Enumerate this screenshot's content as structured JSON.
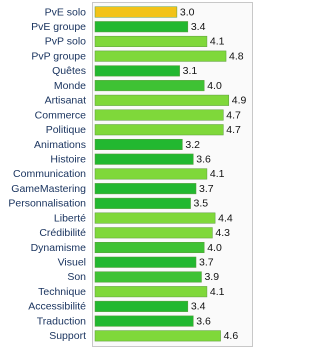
{
  "chart_data": {
    "type": "bar",
    "orientation": "horizontal",
    "categories": [
      "PvE solo",
      "PvE groupe",
      "PvP solo",
      "PvP groupe",
      "Quêtes",
      "Monde",
      "Artisanat",
      "Commerce",
      "Politique",
      "Animations",
      "Histoire",
      "Communication",
      "GameMastering",
      "Personnalisation",
      "Liberté",
      "Crédibilité",
      "Dynamisme",
      "Visuel",
      "Son",
      "Technique",
      "Accessibilité",
      "Traduction",
      "Support"
    ],
    "values": [
      3.0,
      3.4,
      4.1,
      4.8,
      3.1,
      4.0,
      4.9,
      4.7,
      4.7,
      3.2,
      3.6,
      4.1,
      3.7,
      3.5,
      4.4,
      4.3,
      4.0,
      3.7,
      3.9,
      4.1,
      3.4,
      3.6,
      4.6
    ],
    "value_labels": [
      "3.0",
      "3.4",
      "4.1",
      "4.8",
      "3.1",
      "4.0",
      "4.9",
      "4.7",
      "4.7",
      "3.2",
      "3.6",
      "4.1",
      "3.7",
      "3.5",
      "4.4",
      "4.3",
      "4.0",
      "3.7",
      "3.9",
      "4.1",
      "3.4",
      "3.6",
      "4.6"
    ],
    "colors": [
      "#f2c318",
      "#22b830",
      "#7fd83a",
      "#7fd83a",
      "#22b830",
      "#3fc234",
      "#7fd83a",
      "#7fd83a",
      "#7fd83a",
      "#22b830",
      "#22b830",
      "#7fd83a",
      "#22b830",
      "#22b830",
      "#7fd83a",
      "#7fd83a",
      "#3fc234",
      "#22b830",
      "#3fc234",
      "#7fd83a",
      "#22b830",
      "#22b830",
      "#7fd83a"
    ]
  }
}
